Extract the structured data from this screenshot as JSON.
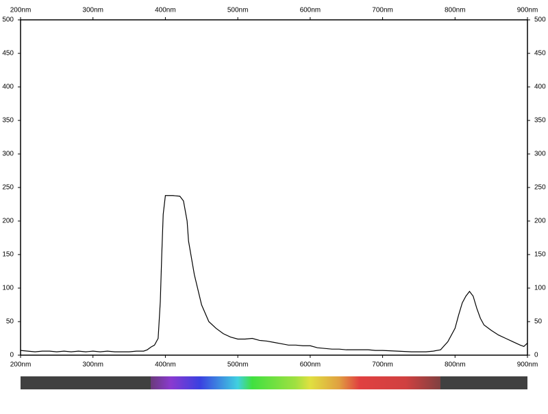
{
  "chart_data": {
    "type": "line",
    "x": [
      200,
      210,
      220,
      230,
      240,
      250,
      260,
      270,
      280,
      290,
      300,
      310,
      320,
      330,
      340,
      350,
      360,
      370,
      375,
      380,
      385,
      390,
      393,
      395,
      397,
      400,
      410,
      420,
      425,
      430,
      432,
      440,
      450,
      460,
      470,
      480,
      490,
      500,
      510,
      520,
      530,
      540,
      550,
      560,
      570,
      580,
      590,
      600,
      610,
      620,
      630,
      640,
      650,
      660,
      670,
      680,
      690,
      700,
      720,
      740,
      760,
      770,
      780,
      790,
      800,
      805,
      810,
      815,
      820,
      825,
      830,
      835,
      840,
      850,
      860,
      870,
      880,
      890,
      895,
      900
    ],
    "series": [
      {
        "color": "#000000",
        "values": [
          7,
          6,
          5,
          6,
          6,
          5,
          6,
          5,
          6,
          5,
          6,
          5,
          6,
          5,
          5,
          5,
          6,
          6,
          8,
          12,
          15,
          25,
          80,
          150,
          210,
          238,
          238,
          237,
          230,
          200,
          170,
          120,
          75,
          50,
          40,
          32,
          27,
          24,
          24,
          25,
          22,
          21,
          19,
          17,
          15,
          15,
          14,
          14,
          11,
          10,
          9,
          9,
          8,
          8,
          8,
          8,
          7,
          7,
          6,
          5,
          5,
          6,
          8,
          20,
          40,
          60,
          78,
          88,
          95,
          88,
          70,
          55,
          45,
          37,
          30,
          25,
          20,
          15,
          13,
          18
        ]
      }
    ],
    "xlim": [
      200,
      900
    ],
    "ylim": [
      0,
      500
    ],
    "xticks": [
      {
        "value": 200,
        "label": "200nm"
      },
      {
        "value": 300,
        "label": "300nm"
      },
      {
        "value": 400,
        "label": "400nm"
      },
      {
        "value": 500,
        "label": "500nm"
      },
      {
        "value": 600,
        "label": "600nm"
      },
      {
        "value": 700,
        "label": "700nm"
      },
      {
        "value": 800,
        "label": "800nm"
      },
      {
        "value": 900,
        "label": "900nm"
      }
    ],
    "yticks": [
      0,
      50,
      100,
      150,
      200,
      250,
      300,
      350,
      400,
      450,
      500
    ],
    "grid": false
  }
}
